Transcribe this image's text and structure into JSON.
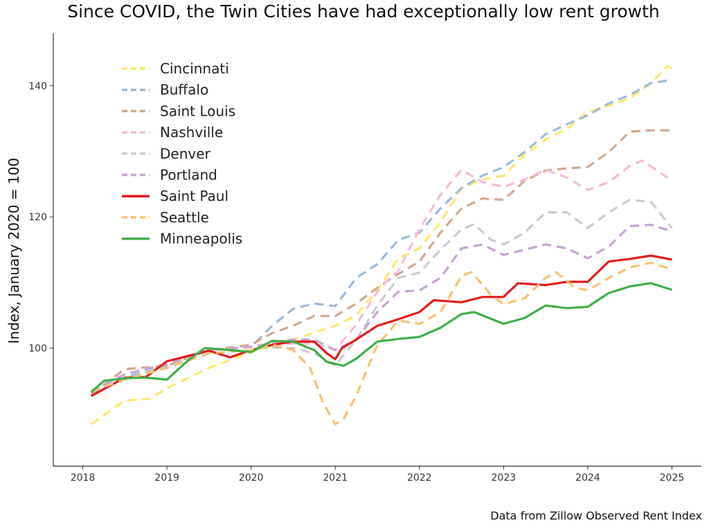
{
  "chart_data": {
    "type": "line",
    "title": "Since COVID, the Twin Cities have had exceptionally low rent growth",
    "xlabel": "",
    "ylabel": "Index, January 2020 = 100",
    "caption": "Data from Zillow Observed Rent Index",
    "xlim": [
      2017.65,
      2025.35
    ],
    "ylim": [
      82,
      148
    ],
    "x_ticks": [
      "2018",
      "2019",
      "2020",
      "2021",
      "2022",
      "2023",
      "2024",
      "2025"
    ],
    "y_ticks": [
      "100",
      "120",
      "140"
    ],
    "grid": false,
    "legend_position": "top-left",
    "series": [
      {
        "name": "Cincinnati",
        "color": "#fde870",
        "dash": "dashed",
        "points": [
          [
            2018.1,
            88.4
          ],
          [
            2018.5,
            92
          ],
          [
            2018.8,
            92.3
          ],
          [
            2019,
            93.9
          ],
          [
            2019.5,
            97
          ],
          [
            2020,
            99.4
          ],
          [
            2020.5,
            101.3
          ],
          [
            2021,
            103.4
          ],
          [
            2021.25,
            105
          ],
          [
            2021.5,
            108.8
          ],
          [
            2021.75,
            113.7
          ],
          [
            2022,
            115.2
          ],
          [
            2022.25,
            119.2
          ],
          [
            2022.5,
            124.4
          ],
          [
            2022.75,
            125.7
          ],
          [
            2023,
            126.3
          ],
          [
            2023.25,
            129.5
          ],
          [
            2023.5,
            131.8
          ],
          [
            2023.75,
            133.4
          ],
          [
            2024,
            136
          ],
          [
            2024.25,
            137
          ],
          [
            2024.5,
            138.1
          ],
          [
            2024.75,
            140.4
          ],
          [
            2024.95,
            143
          ],
          [
            2025,
            142.6
          ]
        ]
      },
      {
        "name": "Buffalo",
        "color": "#9bbcd9",
        "dash": "dashed",
        "points": [
          [
            2018.1,
            93
          ],
          [
            2018.5,
            95.5
          ],
          [
            2019,
            97.3
          ],
          [
            2019.5,
            99.7
          ],
          [
            2020,
            100.2
          ],
          [
            2020.25,
            103.4
          ],
          [
            2020.5,
            106
          ],
          [
            2020.75,
            106.8
          ],
          [
            2021,
            106.4
          ],
          [
            2021.25,
            110.7
          ],
          [
            2021.5,
            112.8
          ],
          [
            2021.75,
            116.5
          ],
          [
            2022,
            117.6
          ],
          [
            2022.25,
            121.3
          ],
          [
            2022.5,
            124.4
          ],
          [
            2022.75,
            126.3
          ],
          [
            2023,
            127.6
          ],
          [
            2023.25,
            129.9
          ],
          [
            2023.5,
            132.6
          ],
          [
            2023.75,
            134.1
          ],
          [
            2024,
            135.5
          ],
          [
            2024.25,
            137.3
          ],
          [
            2024.5,
            138.6
          ],
          [
            2024.75,
            140.4
          ],
          [
            2025,
            140.9
          ]
        ]
      },
      {
        "name": "Saint Louis",
        "color": "#d2a88e",
        "dash": "dashed",
        "points": [
          [
            2018.1,
            93
          ],
          [
            2018.5,
            96.8
          ],
          [
            2019,
            97.3
          ],
          [
            2019.5,
            99.7
          ],
          [
            2020,
            100.5
          ],
          [
            2020.25,
            102.3
          ],
          [
            2020.5,
            103.4
          ],
          [
            2020.75,
            104.9
          ],
          [
            2021,
            104.9
          ],
          [
            2021.25,
            106.8
          ],
          [
            2021.5,
            109.2
          ],
          [
            2021.75,
            111.3
          ],
          [
            2022,
            113.2
          ],
          [
            2022.25,
            117.6
          ],
          [
            2022.5,
            121.3
          ],
          [
            2022.75,
            122.8
          ],
          [
            2023,
            122.6
          ],
          [
            2023.25,
            125.5
          ],
          [
            2023.5,
            127.1
          ],
          [
            2023.75,
            127.4
          ],
          [
            2024,
            127.6
          ],
          [
            2024.25,
            129.9
          ],
          [
            2024.5,
            133
          ],
          [
            2024.75,
            133.2
          ],
          [
            2025,
            133.2
          ]
        ]
      },
      {
        "name": "Nashville",
        "color": "#f6bcd9",
        "dash": "dashed",
        "points": [
          [
            2018.1,
            93.4
          ],
          [
            2018.5,
            96
          ],
          [
            2019,
            97
          ],
          [
            2019.5,
            99.7
          ],
          [
            2020,
            100.2
          ],
          [
            2020.5,
            100.7
          ],
          [
            2020.75,
            100.7
          ],
          [
            2021,
            99.7
          ],
          [
            2021.25,
            103.6
          ],
          [
            2021.5,
            108.6
          ],
          [
            2021.65,
            110.7
          ],
          [
            2021.75,
            111.8
          ],
          [
            2022,
            118.1
          ],
          [
            2022.25,
            123.4
          ],
          [
            2022.5,
            127.2
          ],
          [
            2022.75,
            125.3
          ],
          [
            2023,
            124.6
          ],
          [
            2023.25,
            125.7
          ],
          [
            2023.5,
            127.2
          ],
          [
            2023.75,
            126
          ],
          [
            2024,
            124.1
          ],
          [
            2024.25,
            125.3
          ],
          [
            2024.5,
            127.8
          ],
          [
            2024.65,
            128.6
          ],
          [
            2025,
            125.5
          ]
        ]
      },
      {
        "name": "Denver",
        "color": "#cccccc",
        "dash": "dashed",
        "points": [
          [
            2018.1,
            93.4
          ],
          [
            2018.5,
            96
          ],
          [
            2019,
            97
          ],
          [
            2019.5,
            99.7
          ],
          [
            2020,
            100.2
          ],
          [
            2020.5,
            100
          ],
          [
            2020.75,
            99.2
          ],
          [
            2021,
            97.3
          ],
          [
            2021.25,
            101.3
          ],
          [
            2021.5,
            106.5
          ],
          [
            2021.75,
            110.7
          ],
          [
            2022,
            111.5
          ],
          [
            2022.25,
            115
          ],
          [
            2022.5,
            118.1
          ],
          [
            2022.65,
            118.9
          ],
          [
            2022.85,
            116.5
          ],
          [
            2023,
            115.8
          ],
          [
            2023.25,
            117.6
          ],
          [
            2023.5,
            120.7
          ],
          [
            2023.75,
            120.7
          ],
          [
            2024,
            118.3
          ],
          [
            2024.25,
            120.7
          ],
          [
            2024.5,
            122.6
          ],
          [
            2024.75,
            122.3
          ],
          [
            2025,
            118.3
          ]
        ]
      },
      {
        "name": "Portland",
        "color": "#c7a3d2",
        "dash": "dashed",
        "points": [
          [
            2018.1,
            93.4
          ],
          [
            2018.5,
            96
          ],
          [
            2019,
            97.6
          ],
          [
            2019.5,
            99.7
          ],
          [
            2020,
            100.2
          ],
          [
            2020.5,
            101.3
          ],
          [
            2020.75,
            101.3
          ],
          [
            2021,
            99.7
          ],
          [
            2021.25,
            101.3
          ],
          [
            2021.5,
            105.5
          ],
          [
            2021.75,
            108.6
          ],
          [
            2022,
            108.8
          ],
          [
            2022.25,
            110.7
          ],
          [
            2022.5,
            115.2
          ],
          [
            2022.75,
            115.8
          ],
          [
            2023,
            114.2
          ],
          [
            2023.25,
            115
          ],
          [
            2023.5,
            115.8
          ],
          [
            2023.75,
            115.2
          ],
          [
            2024,
            113.7
          ],
          [
            2024.25,
            115.5
          ],
          [
            2024.5,
            118.6
          ],
          [
            2024.75,
            118.8
          ],
          [
            2025,
            117.8
          ]
        ]
      },
      {
        "name": "Saint Paul",
        "color": "#e31a1c",
        "dash": "solid",
        "points": [
          [
            2018.1,
            92.7
          ],
          [
            2018.5,
            95.5
          ],
          [
            2018.75,
            95.6
          ],
          [
            2019,
            98
          ],
          [
            2019.5,
            99.6
          ],
          [
            2019.75,
            98.6
          ],
          [
            2020,
            99.7
          ],
          [
            2020.25,
            100.5
          ],
          [
            2020.5,
            101
          ],
          [
            2020.75,
            101
          ],
          [
            2020.9,
            99.2
          ],
          [
            2021,
            98.3
          ],
          [
            2021.08,
            100
          ],
          [
            2021.25,
            101.3
          ],
          [
            2021.5,
            103.4
          ],
          [
            2021.75,
            104.4
          ],
          [
            2022,
            105.5
          ],
          [
            2022.17,
            107.3
          ],
          [
            2022.5,
            107
          ],
          [
            2022.75,
            107.8
          ],
          [
            2023,
            107.8
          ],
          [
            2023.17,
            109.9
          ],
          [
            2023.5,
            109.6
          ],
          [
            2023.75,
            110.1
          ],
          [
            2024,
            110.1
          ],
          [
            2024.25,
            113.2
          ],
          [
            2024.5,
            113.6
          ],
          [
            2024.75,
            114.1
          ],
          [
            2025,
            113.5
          ]
        ]
      },
      {
        "name": "Seattle",
        "color": "#fdbf6f",
        "dash": "dashed",
        "points": [
          [
            2018.1,
            93.4
          ],
          [
            2018.5,
            95.2
          ],
          [
            2019,
            97
          ],
          [
            2019.5,
            99.2
          ],
          [
            2020,
            99.7
          ],
          [
            2020.25,
            100.5
          ],
          [
            2020.5,
            99.7
          ],
          [
            2020.7,
            97
          ],
          [
            2020.85,
            91.8
          ],
          [
            2021,
            88.4
          ],
          [
            2021.1,
            89.2
          ],
          [
            2021.25,
            92.8
          ],
          [
            2021.5,
            100.5
          ],
          [
            2021.75,
            104.2
          ],
          [
            2022,
            103.7
          ],
          [
            2022.25,
            105.5
          ],
          [
            2022.5,
            111
          ],
          [
            2022.62,
            111.6
          ],
          [
            2022.85,
            108.1
          ],
          [
            2023,
            106.7
          ],
          [
            2023.25,
            107.6
          ],
          [
            2023.5,
            110.7
          ],
          [
            2023.62,
            111.6
          ],
          [
            2023.85,
            109.2
          ],
          [
            2024,
            108.8
          ],
          [
            2024.25,
            110.7
          ],
          [
            2024.5,
            112.3
          ],
          [
            2024.75,
            113
          ],
          [
            2025,
            112
          ]
        ]
      },
      {
        "name": "Minneapolis",
        "color": "#3fae49",
        "dash": "solid",
        "points": [
          [
            2018.1,
            93.3
          ],
          [
            2018.25,
            95
          ],
          [
            2018.5,
            95.4
          ],
          [
            2018.75,
            95.5
          ],
          [
            2019,
            95.2
          ],
          [
            2019.25,
            98.1
          ],
          [
            2019.45,
            100
          ],
          [
            2019.75,
            99.7
          ],
          [
            2020,
            99.4
          ],
          [
            2020.25,
            101.1
          ],
          [
            2020.5,
            101
          ],
          [
            2020.75,
            99.7
          ],
          [
            2020.9,
            97.9
          ],
          [
            2021,
            97.6
          ],
          [
            2021.1,
            97.3
          ],
          [
            2021.25,
            98.4
          ],
          [
            2021.5,
            101
          ],
          [
            2021.75,
            101.4
          ],
          [
            2022,
            101.7
          ],
          [
            2022.25,
            103.1
          ],
          [
            2022.5,
            105.2
          ],
          [
            2022.65,
            105.5
          ],
          [
            2023,
            103.7
          ],
          [
            2023.25,
            104.6
          ],
          [
            2023.5,
            106.5
          ],
          [
            2023.75,
            106.1
          ],
          [
            2024,
            106.3
          ],
          [
            2024.25,
            108.4
          ],
          [
            2024.5,
            109.4
          ],
          [
            2024.75,
            109.9
          ],
          [
            2025,
            108.9
          ]
        ]
      }
    ]
  }
}
